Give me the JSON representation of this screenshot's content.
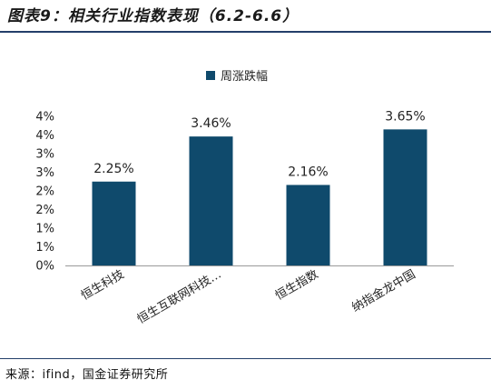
{
  "header": {
    "title": "图表9：相关行业指数表现（6.2-6.6）"
  },
  "footer": {
    "source": "来源：ifind，国金证券研究所"
  },
  "chart_data": {
    "type": "bar",
    "categories": [
      "恒生科技",
      "恒生互联网科技…",
      "恒生指数",
      "纳指金龙中国"
    ],
    "series": [
      {
        "name": "周涨跌幅",
        "values": [
          2.25,
          3.46,
          2.16,
          3.65
        ],
        "data_labels": [
          "2.25%",
          "3.46%",
          "2.16%",
          "3.65%"
        ],
        "color": "#0f4a6c"
      }
    ],
    "yticks": [
      "0%",
      "1%",
      "1%",
      "2%",
      "2%",
      "3%",
      "3%",
      "4%",
      "4%"
    ],
    "ylim": [
      0,
      4.0
    ],
    "legend_position": "top-center",
    "grid": false
  }
}
